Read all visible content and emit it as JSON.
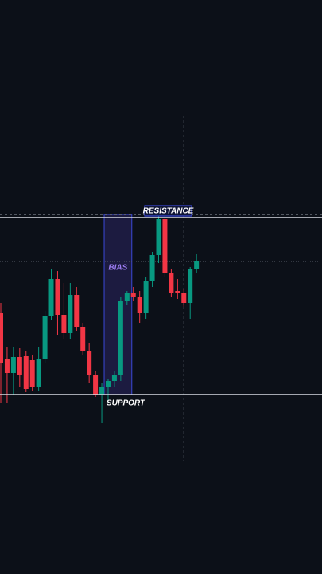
{
  "chart_data": {
    "type": "candlestick",
    "ylim": [
      0,
      720
    ],
    "colors": {
      "up": "#089981",
      "down": "#f23645"
    },
    "open": [
      327,
      270,
      252,
      272,
      273,
      268,
      235,
      270,
      323,
      370,
      325,
      302,
      350,
      310,
      280,
      250,
      225,
      235,
      242,
      250,
      343,
      352,
      348,
      327,
      368,
      400,
      445,
      377,
      355,
      353,
      340,
      382
    ],
    "close": [
      265,
      252,
      272,
      250,
      232,
      235,
      270,
      323,
      370,
      325,
      302,
      350,
      310,
      280,
      250,
      225,
      235,
      242,
      250,
      343,
      352,
      348,
      327,
      368,
      400,
      445,
      377,
      353,
      352,
      340,
      382,
      392
    ],
    "high": [
      340,
      285,
      285,
      283,
      280,
      275,
      285,
      330,
      382,
      380,
      365,
      365,
      360,
      315,
      290,
      255,
      240,
      245,
      255,
      348,
      355,
      360,
      355,
      372,
      404,
      450,
      450,
      382,
      370,
      358,
      385,
      402
    ],
    "low": [
      215,
      215,
      225,
      235,
      228,
      230,
      230,
      265,
      318,
      300,
      295,
      295,
      305,
      275,
      240,
      222,
      190,
      215,
      235,
      242,
      338,
      342,
      315,
      320,
      360,
      390,
      372,
      348,
      345,
      335,
      320,
      378
    ],
    "levels": [
      {
        "label": "RESISTANCE",
        "value": 447
      },
      {
        "label": "SUPPORT",
        "value": 225
      }
    ],
    "bias_zone": {
      "label": "BIAS",
      "start": 17,
      "end": 20,
      "top": 451,
      "bottom": 225
    },
    "crosshair": {
      "price": 392,
      "index": 29
    }
  }
}
